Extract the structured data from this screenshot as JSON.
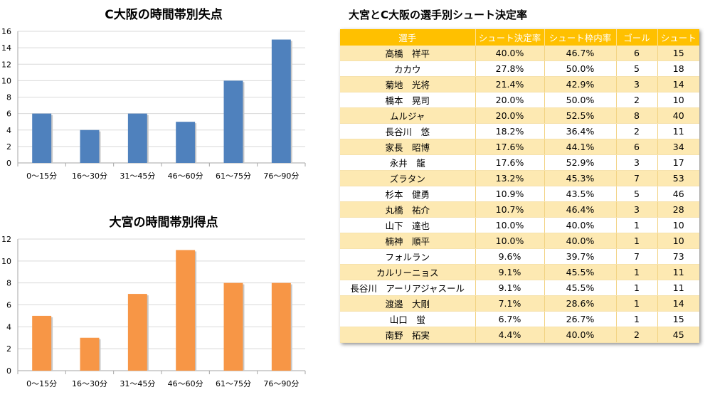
{
  "chart_data": [
    {
      "type": "bar",
      "title": "C大阪の時間帯別失点",
      "categories": [
        "0～15分",
        "16～30分",
        "31～45分",
        "46～60分",
        "61～75分",
        "76～90分"
      ],
      "values": [
        6,
        4,
        6,
        5,
        10,
        15
      ],
      "ylim": [
        0,
        16
      ],
      "yticks": [
        0,
        2,
        4,
        6,
        8,
        10,
        12,
        14,
        16
      ],
      "grid": true,
      "color": "#4f81bd"
    },
    {
      "type": "bar",
      "title": "大宮の時間帯別得点",
      "categories": [
        "0～15分",
        "16～30分",
        "31～45分",
        "46～60分",
        "61～75分",
        "76～90分"
      ],
      "values": [
        5,
        3,
        7,
        11,
        8,
        8
      ],
      "ylim": [
        0,
        12
      ],
      "yticks": [
        0,
        2,
        4,
        6,
        8,
        10,
        12
      ],
      "grid": true,
      "color": "#f79646"
    },
    {
      "type": "table",
      "title": "大宮とC大阪の選手別シュート決定率",
      "columns": [
        "選手",
        "シュート決定率",
        "シュート枠内率",
        "ゴール",
        "シュート"
      ],
      "rows": [
        [
          "高橋　祥平",
          "40.0%",
          "46.7%",
          "6",
          "15"
        ],
        [
          "カカウ",
          "27.8%",
          "50.0%",
          "5",
          "18"
        ],
        [
          "菊地　光将",
          "21.4%",
          "42.9%",
          "3",
          "14"
        ],
        [
          "橋本　晃司",
          "20.0%",
          "50.0%",
          "2",
          "10"
        ],
        [
          "ムルジャ",
          "20.0%",
          "52.5%",
          "8",
          "40"
        ],
        [
          "長谷川　悠",
          "18.2%",
          "36.4%",
          "2",
          "11"
        ],
        [
          "家長　昭博",
          "17.6%",
          "44.1%",
          "6",
          "34"
        ],
        [
          "永井　龍",
          "17.6%",
          "52.9%",
          "3",
          "17"
        ],
        [
          "ズラタン",
          "13.2%",
          "45.3%",
          "7",
          "53"
        ],
        [
          "杉本　健勇",
          "10.9%",
          "43.5%",
          "5",
          "46"
        ],
        [
          "丸橋　祐介",
          "10.7%",
          "46.4%",
          "3",
          "28"
        ],
        [
          "山下　達也",
          "10.0%",
          "40.0%",
          "1",
          "10"
        ],
        [
          "楠神　順平",
          "10.0%",
          "40.0%",
          "1",
          "10"
        ],
        [
          "フォルラン",
          "9.6%",
          "39.7%",
          "7",
          "73"
        ],
        [
          "カルリーニョス",
          "9.1%",
          "45.5%",
          "1",
          "11"
        ],
        [
          "長谷川　アーリアジャスール",
          "9.1%",
          "45.5%",
          "1",
          "11"
        ],
        [
          "渡邉　大剛",
          "7.1%",
          "28.6%",
          "1",
          "14"
        ],
        [
          "山口　蛍",
          "6.7%",
          "26.7%",
          "1",
          "15"
        ],
        [
          "南野　拓実",
          "4.4%",
          "40.0%",
          "2",
          "45"
        ]
      ],
      "header_color": "#ffc000",
      "stripe_color": "#fde9b2"
    }
  ]
}
